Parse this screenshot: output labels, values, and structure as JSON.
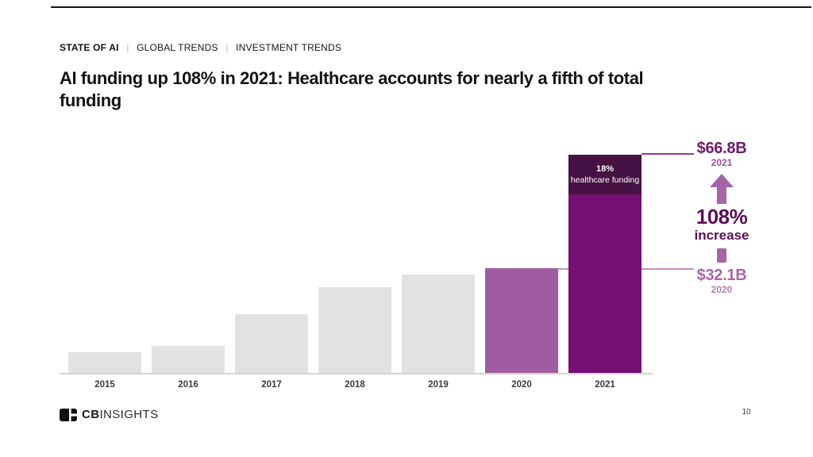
{
  "header": {
    "eyebrow": {
      "primary": "STATE OF AI",
      "separator": "|",
      "secondary_1": "GLOBAL TRENDS",
      "secondary_2": "INVESTMENT TRENDS"
    },
    "title_lines": {
      "line1": "AI funding up 108% in 2021: Healthcare accounts for nearly a fifth of total",
      "line2": "funding"
    }
  },
  "chart_data": {
    "type": "bar",
    "title": "AI funding up 108% in 2021: Healthcare accounts for nearly a fifth of total funding",
    "categories": [
      "2015",
      "2016",
      "2017",
      "2018",
      "2019",
      "2020",
      "2021"
    ],
    "values_usd_billions": [
      6.3,
      8.3,
      18.0,
      26.3,
      30.2,
      32.1,
      66.8
    ],
    "labeled_points": [
      {
        "year": "2020",
        "label": "$32.1B"
      },
      {
        "year": "2021",
        "label": "$66.8B"
      }
    ],
    "segments_2021": {
      "share_fraction": 0.18,
      "percent": "18%",
      "label": "healthcare funding"
    },
    "xlabel": "",
    "ylabel": "",
    "value_axis_visible": false,
    "grid": false,
    "legend": "none"
  },
  "annotations": {
    "top": {
      "value": "$66.8B",
      "year": "2021"
    },
    "middle": {
      "percent": "108%",
      "label": "increase"
    },
    "bottom": {
      "value": "$32.1B",
      "year": "2020"
    },
    "bar_2021_overlay": {
      "percent": "18%",
      "label": "healthcare funding"
    }
  },
  "footer": {
    "brand_bold": "CB",
    "brand_light": "INSIGHTS",
    "page_number": "10"
  },
  "colors": {
    "bar_default": "#e2e2e2",
    "bar_2020": "#a05ca0",
    "bar_2021": "#751174",
    "bar_2021_cap": "#461243",
    "connector_top": "#8f3b8f",
    "connector_bottom": "#c491c4",
    "baseline": "#d2d2d2",
    "value_2021_label": "#6d1a6d",
    "year_2021_label": "#9c4f9c",
    "increase_text": "#5b0f56",
    "value_2020_label": "#aa66aa",
    "year_2020_label": "#b57db5",
    "arrow_purple": "#a763a7",
    "text_dark": "#141414"
  }
}
